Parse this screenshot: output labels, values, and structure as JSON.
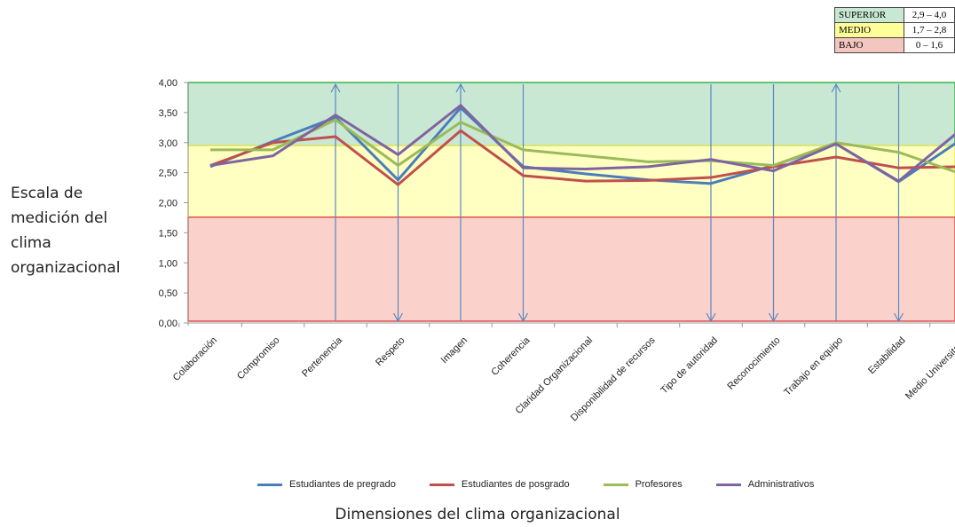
{
  "ylabel_lines": [
    "Escala de",
    "medición del",
    "clima",
    "organizacional"
  ],
  "xlabel": "Dimensiones del clima organizacional",
  "scale_table": [
    {
      "label": "SUPERIOR",
      "range": "2,9 – 4,0",
      "color": "#c9e8d4"
    },
    {
      "label": "MEDIO",
      "range": "1,7 – 2,8",
      "color": "#ffff99"
    },
    {
      "label": "BAJO",
      "range": "0 – 1,6",
      "color": "#f4c6c0"
    }
  ],
  "chart_data": {
    "type": "line",
    "ylim": [
      0,
      4
    ],
    "yticks": [
      "0,00",
      "0,50",
      "1,00",
      "1,50",
      "2,00",
      "2,50",
      "3,00",
      "3,50",
      "4,00"
    ],
    "categories": [
      "Colaboración",
      "Compromiso",
      "Pertenencia",
      "Respeto",
      "Imagen",
      "Coherencia",
      "Claridad Organizacional",
      "Disponibilidad de recursos",
      "Tipo de autoridad",
      "Reconocimiento",
      "Trabajo en equipo",
      "Estabilidad",
      "Medio Universitario"
    ],
    "series": [
      {
        "name": "Estudiantes de pregrado",
        "color": "#4a7ebb",
        "values": [
          2.6,
          3.02,
          3.42,
          2.38,
          3.58,
          2.6,
          2.48,
          2.38,
          2.32,
          2.62,
          2.98,
          2.35,
          3.05
        ]
      },
      {
        "name": "Estudiantes de posgrado",
        "color": "#c0504d",
        "values": [
          2.62,
          3.0,
          3.1,
          2.3,
          3.2,
          2.45,
          2.36,
          2.37,
          2.42,
          2.6,
          2.76,
          2.58,
          2.6
        ]
      },
      {
        "name": "Profesores",
        "color": "#9bbb59",
        "values": [
          2.88,
          2.88,
          3.38,
          2.62,
          3.34,
          2.88,
          2.78,
          2.68,
          2.7,
          2.62,
          3.0,
          2.84,
          2.48
        ]
      },
      {
        "name": "Administrativos",
        "color": "#8064a2",
        "values": [
          2.62,
          2.78,
          3.46,
          2.8,
          3.62,
          2.58,
          2.56,
          2.6,
          2.72,
          2.53,
          2.98,
          2.36,
          3.22
        ]
      }
    ],
    "bands": [
      {
        "from": 2.95,
        "to": 4.0,
        "fill": "#c9e8d4",
        "stroke": "#3cb44b"
      },
      {
        "from": 1.76,
        "to": 2.95,
        "fill": "#ffffc2",
        "stroke": "#e8e855"
      },
      {
        "from": 0.03,
        "to": 1.76,
        "fill": "#fad2cb",
        "stroke": "#e05050"
      }
    ],
    "arrows": [
      {
        "category": 2,
        "direction": "up"
      },
      {
        "category": 3,
        "direction": "down"
      },
      {
        "category": 4,
        "direction": "up"
      },
      {
        "category": 5,
        "direction": "down"
      },
      {
        "category": 8,
        "direction": "down"
      },
      {
        "category": 9,
        "direction": "down"
      },
      {
        "category": 10,
        "direction": "up"
      },
      {
        "category": 11,
        "direction": "down"
      }
    ],
    "arrow_color": "#5b87c0"
  }
}
